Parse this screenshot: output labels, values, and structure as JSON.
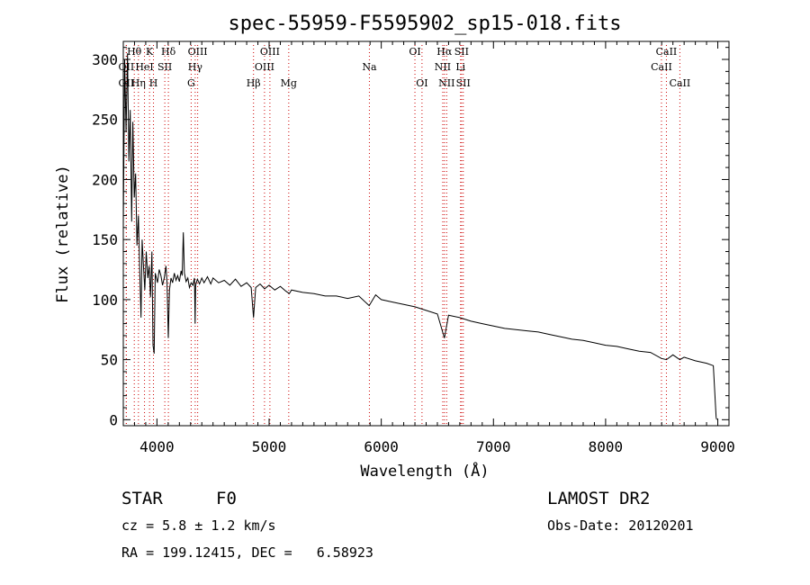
{
  "chart_data": {
    "type": "line",
    "title": "spec-55959-F5595902_sp15-018.fits",
    "xlabel": "Wavelength (Å)",
    "ylabel": "Flux (relative)",
    "xlim": [
      3700,
      9100
    ],
    "ylim": [
      -5,
      315
    ],
    "xticks": [
      4000,
      5000,
      6000,
      7000,
      8000,
      9000
    ],
    "yticks": [
      0,
      50,
      100,
      150,
      200,
      250,
      300
    ],
    "grid": false,
    "line_color": "#000000",
    "marker_color": "#cc0000",
    "spectrum": [
      [
        3700,
        160
      ],
      [
        3712,
        300
      ],
      [
        3725,
        240
      ],
      [
        3738,
        305
      ],
      [
        3750,
        215
      ],
      [
        3762,
        258
      ],
      [
        3775,
        165
      ],
      [
        3785,
        248
      ],
      [
        3798,
        185
      ],
      [
        3810,
        205
      ],
      [
        3822,
        145
      ],
      [
        3835,
        170
      ],
      [
        3848,
        120
      ],
      [
        3858,
        85
      ],
      [
        3868,
        150
      ],
      [
        3880,
        128
      ],
      [
        3892,
        108
      ],
      [
        3905,
        140
      ],
      [
        3918,
        118
      ],
      [
        3930,
        128
      ],
      [
        3942,
        102
      ],
      [
        3955,
        140
      ],
      [
        3965,
        62
      ],
      [
        3975,
        55
      ],
      [
        3985,
        122
      ],
      [
        3995,
        118
      ],
      [
        4005,
        114
      ],
      [
        4020,
        125
      ],
      [
        4035,
        120
      ],
      [
        4050,
        112
      ],
      [
        4065,
        118
      ],
      [
        4080,
        128
      ],
      [
        4090,
        114
      ],
      [
        4101,
        68
      ],
      [
        4112,
        108
      ],
      [
        4125,
        118
      ],
      [
        4140,
        114
      ],
      [
        4155,
        122
      ],
      [
        4170,
        116
      ],
      [
        4185,
        120
      ],
      [
        4200,
        115
      ],
      [
        4215,
        124
      ],
      [
        4225,
        120
      ],
      [
        4235,
        156
      ],
      [
        4245,
        122
      ],
      [
        4260,
        115
      ],
      [
        4275,
        118
      ],
      [
        4290,
        110
      ],
      [
        4305,
        114
      ],
      [
        4320,
        112
      ],
      [
        4335,
        118
      ],
      [
        4340,
        80
      ],
      [
        4345,
        112
      ],
      [
        4360,
        117
      ],
      [
        4380,
        113
      ],
      [
        4400,
        118
      ],
      [
        4420,
        114
      ],
      [
        4450,
        119
      ],
      [
        4480,
        113
      ],
      [
        4500,
        118
      ],
      [
        4550,
        114
      ],
      [
        4600,
        116
      ],
      [
        4650,
        112
      ],
      [
        4700,
        117
      ],
      [
        4750,
        111
      ],
      [
        4800,
        114
      ],
      [
        4840,
        110
      ],
      [
        4861,
        85
      ],
      [
        4880,
        110
      ],
      [
        4920,
        113
      ],
      [
        4960,
        109
      ],
      [
        5000,
        112
      ],
      [
        5050,
        108
      ],
      [
        5100,
        111
      ],
      [
        5150,
        107
      ],
      [
        5180,
        105
      ],
      [
        5200,
        108
      ],
      [
        5300,
        106
      ],
      [
        5400,
        105
      ],
      [
        5500,
        103
      ],
      [
        5600,
        103
      ],
      [
        5700,
        101
      ],
      [
        5800,
        103
      ],
      [
        5892,
        95
      ],
      [
        5950,
        104
      ],
      [
        6000,
        100
      ],
      [
        6100,
        98
      ],
      [
        6200,
        96
      ],
      [
        6300,
        94
      ],
      [
        6400,
        91
      ],
      [
        6500,
        88
      ],
      [
        6563,
        68
      ],
      [
        6600,
        87
      ],
      [
        6700,
        85
      ],
      [
        6800,
        82
      ],
      [
        6900,
        80
      ],
      [
        7000,
        78
      ],
      [
        7100,
        76
      ],
      [
        7200,
        75
      ],
      [
        7300,
        74
      ],
      [
        7400,
        73
      ],
      [
        7500,
        71
      ],
      [
        7600,
        69
      ],
      [
        7700,
        67
      ],
      [
        7800,
        66
      ],
      [
        7900,
        64
      ],
      [
        8000,
        62
      ],
      [
        8100,
        61
      ],
      [
        8200,
        59
      ],
      [
        8300,
        57
      ],
      [
        8400,
        56
      ],
      [
        8498,
        51
      ],
      [
        8542,
        50
      ],
      [
        8600,
        54
      ],
      [
        8662,
        50
      ],
      [
        8700,
        52
      ],
      [
        8800,
        49
      ],
      [
        8900,
        47
      ],
      [
        8960,
        45
      ],
      [
        8985,
        2
      ],
      [
        8990,
        0
      ]
    ],
    "lines": [
      {
        "label": "OII",
        "x": 3727,
        "row": 1
      },
      {
        "label": "OII",
        "x": 3727,
        "row": 2
      },
      {
        "label": "Hθ",
        "x": 3798,
        "row": 0
      },
      {
        "label": "Hη",
        "x": 3835,
        "row": 2
      },
      {
        "label": "HeI",
        "x": 3889,
        "row": 1
      },
      {
        "label": "K",
        "x": 3934,
        "row": 0
      },
      {
        "label": "H",
        "x": 3969,
        "row": 2
      },
      {
        "label": "SII",
        "x": 4070,
        "row": 1
      },
      {
        "label": "Hδ",
        "x": 4102,
        "row": 0
      },
      {
        "label": "G",
        "x": 4305,
        "row": 2
      },
      {
        "label": "Hγ",
        "x": 4341,
        "row": 1
      },
      {
        "label": "OIII",
        "x": 4363,
        "row": 0
      },
      {
        "label": "Hβ",
        "x": 4861,
        "row": 2
      },
      {
        "label": "OIII",
        "x": 4959,
        "row": 1
      },
      {
        "label": "OIII",
        "x": 5007,
        "row": 0
      },
      {
        "label": "Mg",
        "x": 5175,
        "row": 2
      },
      {
        "label": "Na",
        "x": 5894,
        "row": 1
      },
      {
        "label": "OI",
        "x": 6300,
        "row": 0
      },
      {
        "label": "OI",
        "x": 6363,
        "row": 2
      },
      {
        "label": "NII",
        "x": 6548,
        "row": 1
      },
      {
        "label": "Hα",
        "x": 6563,
        "row": 0
      },
      {
        "label": "NII",
        "x": 6583,
        "row": 2
      },
      {
        "label": "Li",
        "x": 6707,
        "row": 1
      },
      {
        "label": "SII",
        "x": 6716,
        "row": 0
      },
      {
        "label": "SII",
        "x": 6731,
        "row": 2
      },
      {
        "label": "CaII",
        "x": 8498,
        "row": 1
      },
      {
        "label": "CaII",
        "x": 8542,
        "row": 0
      },
      {
        "label": "CaII",
        "x": 8662,
        "row": 2
      }
    ]
  },
  "info": {
    "class": "STAR",
    "subclass": "F0",
    "survey": "LAMOST DR2",
    "cz": "cz = 5.8 ± 1.2 km/s",
    "obs_date": "Obs-Date: 20120201",
    "coords": "RA = 199.12415, DEC =   6.58923"
  }
}
